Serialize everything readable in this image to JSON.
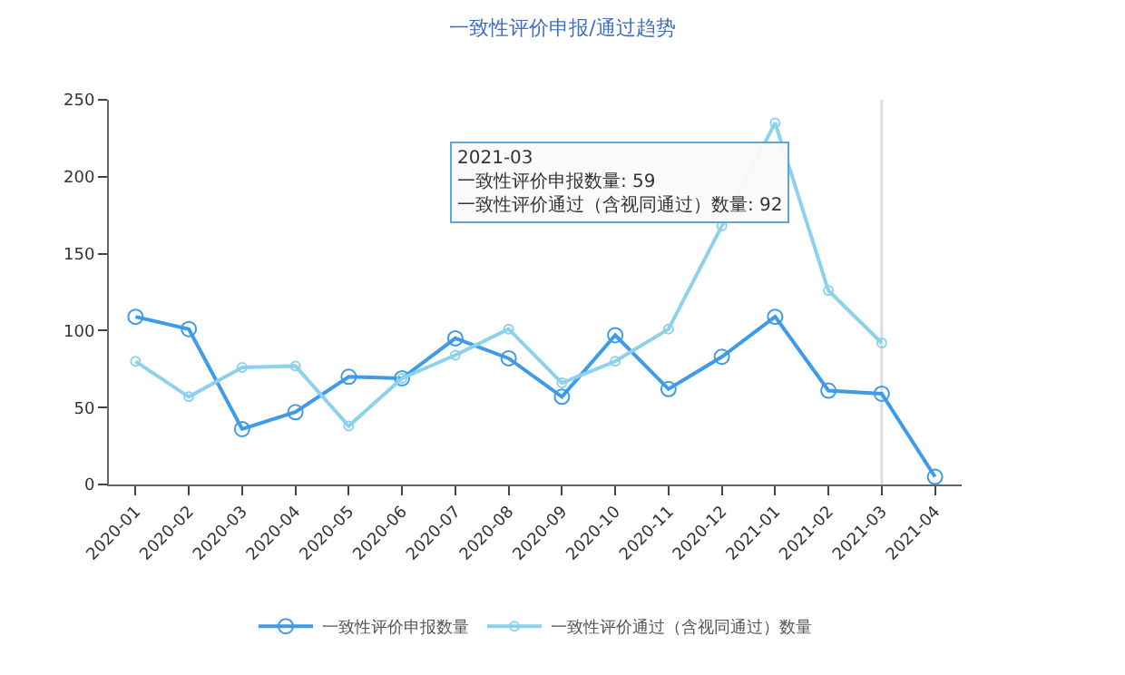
{
  "chart_data": {
    "type": "line",
    "title": "一致性评价申报/通过趋势",
    "categories": [
      "2020-01",
      "2020-02",
      "2020-03",
      "2020-04",
      "2020-05",
      "2020-06",
      "2020-07",
      "2020-08",
      "2020-09",
      "2020-10",
      "2020-11",
      "2020-12",
      "2021-01",
      "2021-02",
      "2021-03",
      "2021-04"
    ],
    "series": [
      {
        "name": "一致性评价申报数量",
        "color": "#3d9be9",
        "values": [
          109,
          101,
          36,
          47,
          70,
          69,
          95,
          82,
          57,
          97,
          62,
          83,
          109,
          61,
          59,
          5
        ]
      },
      {
        "name": "一致性评价通过（含视同通过）数量",
        "color": "#8ed1ec",
        "values": [
          80,
          57,
          76,
          77,
          38,
          69,
          84,
          101,
          66,
          80,
          101,
          168,
          235,
          126,
          92,
          null
        ]
      }
    ],
    "ylim": [
      0,
      250
    ],
    "yticks": [
      0,
      50,
      100,
      150,
      200,
      250
    ],
    "grid": false,
    "legend": "bottom",
    "marker": "circle",
    "line_style": "solid",
    "ref_lines": [
      {
        "axis": "x",
        "value": "2021-03",
        "color": "#dddddd"
      }
    ],
    "annotations": [
      "2021-03",
      "一致性评价申报数量: 59",
      "一致性评价通过（含视同通过）数量: 92"
    ]
  }
}
